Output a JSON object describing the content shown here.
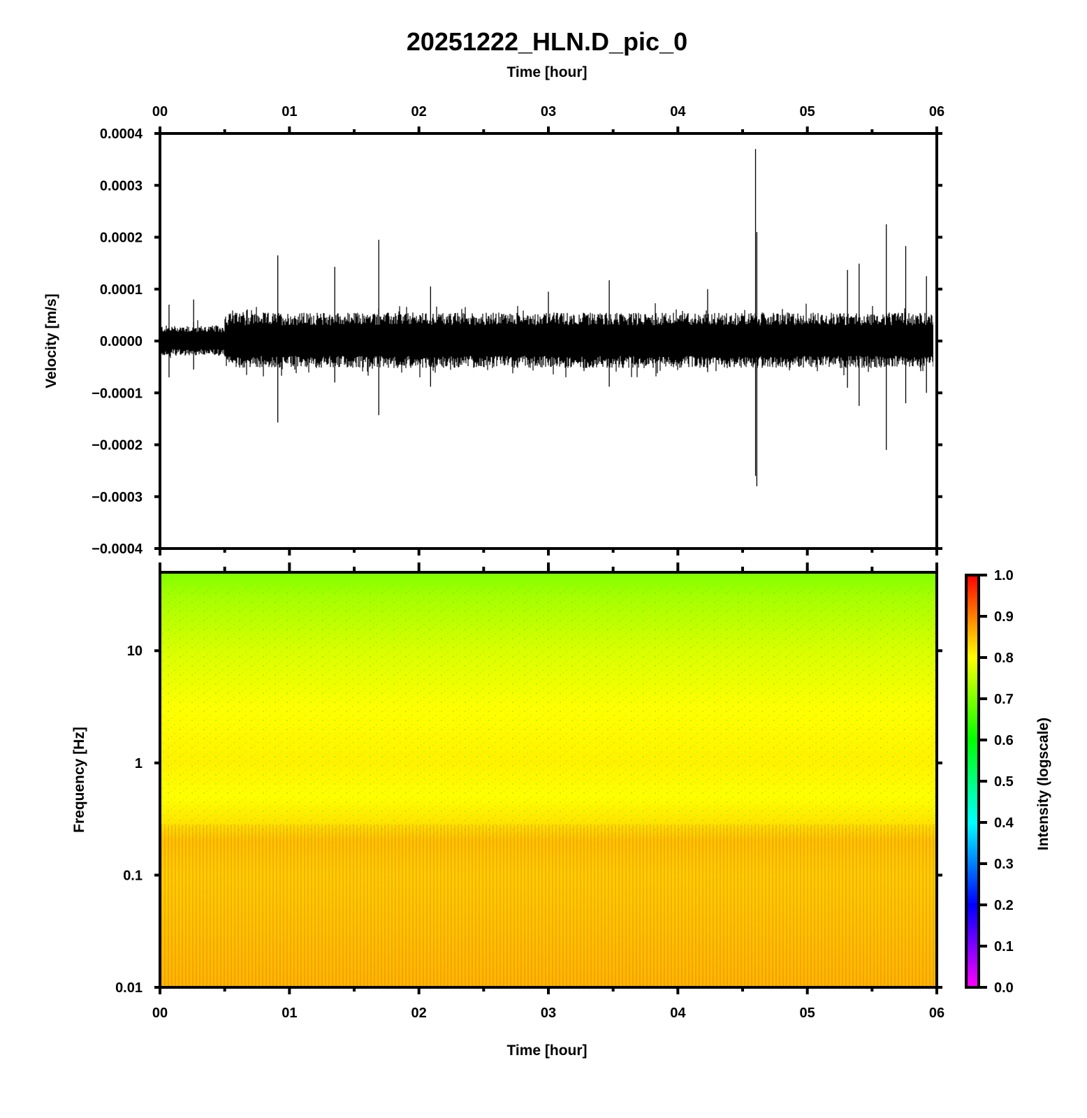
{
  "figure": {
    "title": "20251222_HLN.D_pic_0",
    "top_xlabel": "Time [hour]",
    "bottom_xlabel": "Time [hour]"
  },
  "colors": {
    "frame": "#000000",
    "trace": "#000000",
    "background": "#ffffff"
  },
  "chart_data": [
    {
      "type": "line",
      "name": "waveform",
      "ylabel": "Velocity [m/s]",
      "xlabel": "Time [hour]",
      "xlim": [
        0,
        6
      ],
      "ylim": [
        -0.0004,
        0.0004
      ],
      "x_ticks": [
        "00",
        "01",
        "02",
        "03",
        "04",
        "05",
        "06"
      ],
      "y_ticks": [
        "0.0004",
        "0.0003",
        "0.0002",
        "0.0001",
        "0.0000",
        "−0.0001",
        "−0.0002",
        "−0.0003",
        "−0.0004"
      ],
      "noise_envelope": [
        {
          "x_start": 0.0,
          "x_end": 0.5,
          "amplitude": 3e-05
        },
        {
          "x_start": 0.5,
          "x_end": 6.0,
          "amplitude": 5.5e-05
        }
      ],
      "spikes": [
        {
          "x": 0.07,
          "max": 7e-05,
          "min": -7e-05
        },
        {
          "x": 0.26,
          "max": 8e-05,
          "min": -5.5e-05
        },
        {
          "x": 0.91,
          "max": 0.000165,
          "min": -0.000157
        },
        {
          "x": 1.35,
          "max": 0.000143,
          "min": -8e-05
        },
        {
          "x": 1.69,
          "max": 0.000195,
          "min": -0.000143
        },
        {
          "x": 2.09,
          "max": 0.000105,
          "min": -8.8e-05
        },
        {
          "x": 3.0,
          "max": 9.5e-05,
          "min": -4e-05
        },
        {
          "x": 3.47,
          "max": 0.000117,
          "min": -8.8e-05
        },
        {
          "x": 4.23,
          "max": 0.0001,
          "min": -6e-05
        },
        {
          "x": 4.6,
          "max": 0.00037,
          "min": -0.00026
        },
        {
          "x": 4.61,
          "max": 0.00021,
          "min": -0.00028
        },
        {
          "x": 5.31,
          "max": 0.000137,
          "min": -9e-05
        },
        {
          "x": 5.4,
          "max": 0.000149,
          "min": -0.000125
        },
        {
          "x": 5.61,
          "max": 0.000225,
          "min": -0.00021
        },
        {
          "x": 5.76,
          "max": 0.000183,
          "min": -0.00012
        },
        {
          "x": 5.92,
          "max": 0.000125,
          "min": -0.0001
        }
      ]
    },
    {
      "type": "heatmap",
      "name": "spectrogram",
      "ylabel": "Frequency [Hz]",
      "xlabel": "Time [hour]",
      "xlim": [
        0,
        6
      ],
      "ylim": [
        0.01,
        50
      ],
      "yscale": "log",
      "x_ticks": [
        "00",
        "01",
        "02",
        "03",
        "04",
        "05",
        "06"
      ],
      "y_ticks": [
        {
          "value": 10,
          "label": "10"
        },
        {
          "value": 1,
          "label": "1"
        },
        {
          "value": 0.1,
          "label": "0.1"
        },
        {
          "value": 0.01,
          "label": "0.01"
        }
      ],
      "intensity_by_frequency": [
        {
          "freq": 50,
          "intensity": 0.7
        },
        {
          "freq": 30,
          "intensity": 0.73
        },
        {
          "freq": 10,
          "intensity": 0.77
        },
        {
          "freq": 3,
          "intensity": 0.8
        },
        {
          "freq": 1,
          "intensity": 0.81
        },
        {
          "freq": 0.5,
          "intensity": 0.8
        },
        {
          "freq": 0.3,
          "intensity": 0.82
        },
        {
          "freq": 0.2,
          "intensity": 0.85
        },
        {
          "freq": 0.1,
          "intensity": 0.84
        },
        {
          "freq": 0.01,
          "intensity": 0.86
        }
      ],
      "colorbar": {
        "label": "Intensity (logscale)",
        "range": [
          0,
          1
        ],
        "ticks": [
          "1.0",
          "0.9",
          "0.8",
          "0.7",
          "0.6",
          "0.5",
          "0.4",
          "0.3",
          "0.2",
          "0.1",
          "0.0"
        ],
        "colors": [
          "#ff00ff",
          "#8000ff",
          "#0000ff",
          "#0080ff",
          "#00ffff",
          "#00ff80",
          "#00ff00",
          "#80ff00",
          "#ffff00",
          "#ff8000",
          "#ff0000"
        ]
      }
    }
  ]
}
